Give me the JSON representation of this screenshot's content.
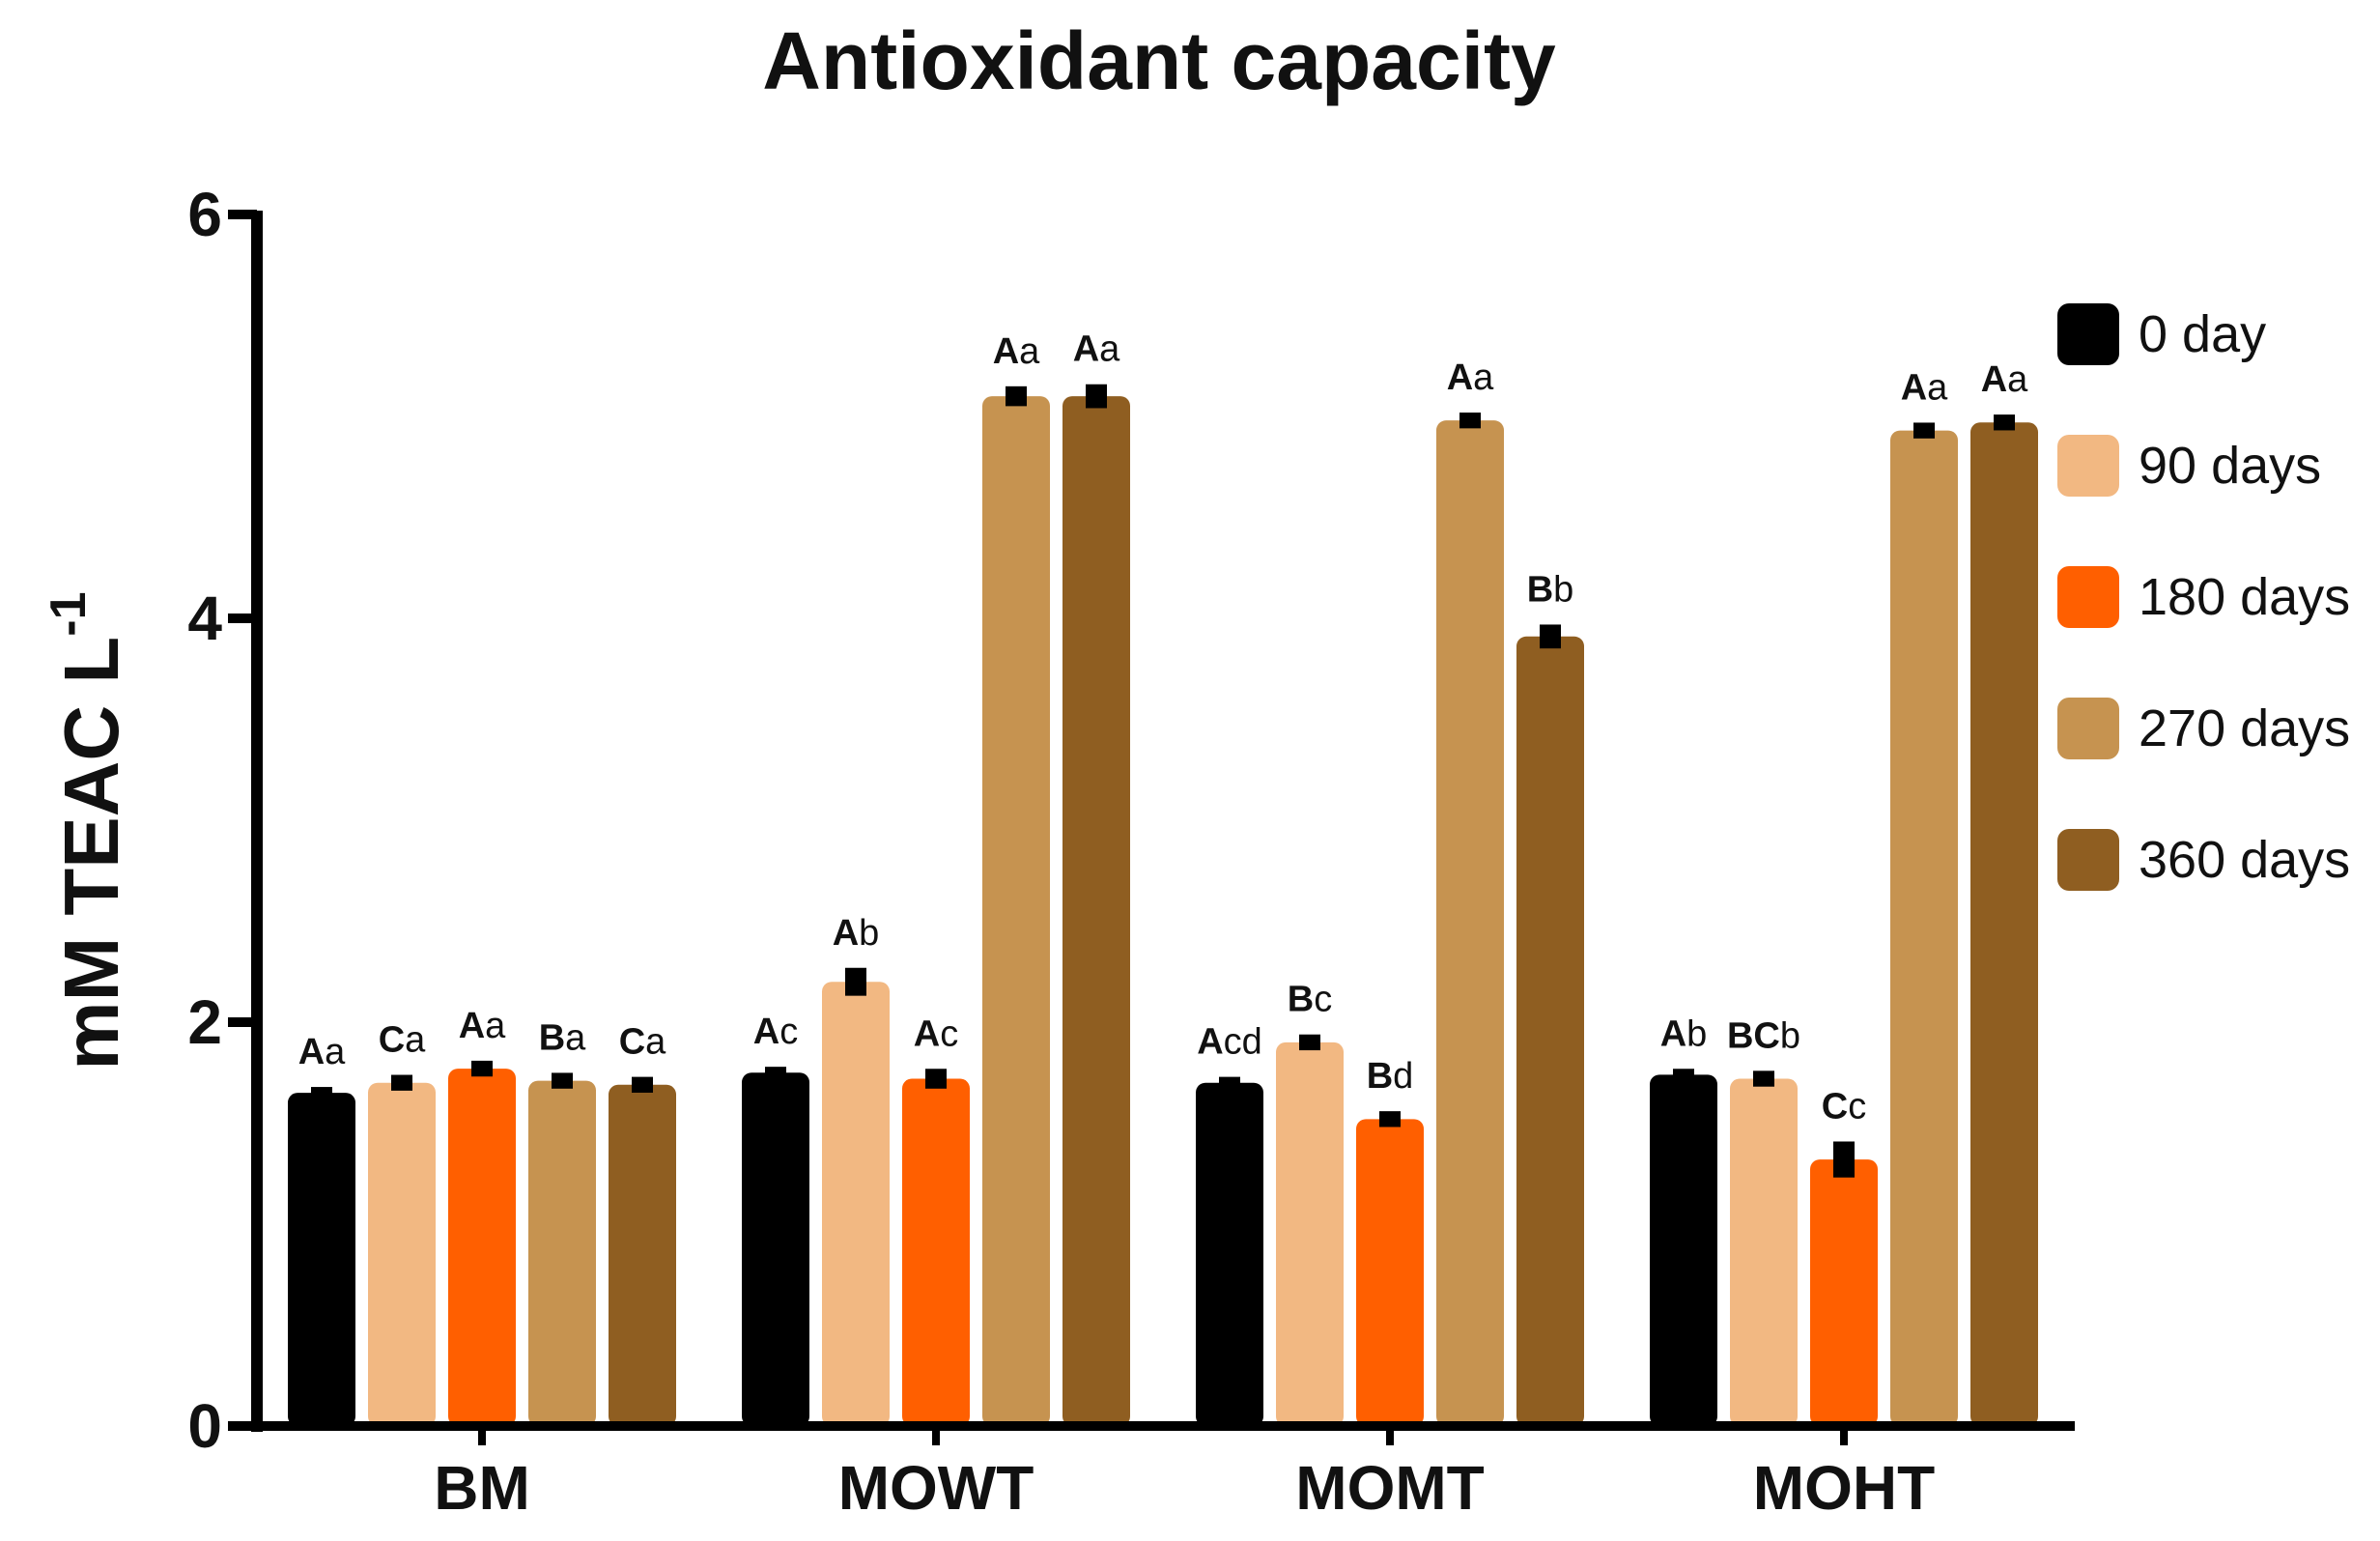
{
  "chart_data": {
    "type": "bar",
    "title": "Antioxidant capacity",
    "xlabel": "",
    "ylabel": "mM TEAC L",
    "ylabel_superscript": "-1",
    "ylim": [
      0,
      6
    ],
    "yticks": [
      "0",
      "2",
      "4",
      "6"
    ],
    "categories": [
      "BM",
      "MOWT",
      "MOMT",
      "MOHT"
    ],
    "legend_position": "right",
    "series": [
      {
        "name": "0 day",
        "color": "#000000",
        "values": [
          1.65,
          1.75,
          1.7,
          1.74
        ],
        "errors": [
          0.01,
          0.01,
          0.01,
          0.01
        ],
        "labels": [
          [
            "A",
            "a"
          ],
          [
            "A",
            "c"
          ],
          [
            "A",
            "cd"
          ],
          [
            "A",
            "b"
          ]
        ]
      },
      {
        "name": "90 days",
        "color": "#F2B882",
        "values": [
          1.7,
          2.2,
          1.9,
          1.72
        ],
        "errors": [
          0.02,
          0.05,
          0.02,
          0.02
        ],
        "labels": [
          [
            "C",
            "a"
          ],
          [
            "A",
            "b"
          ],
          [
            "B",
            "c"
          ],
          [
            "BC",
            "b"
          ]
        ]
      },
      {
        "name": "180 days",
        "color": "#FF5F00",
        "values": [
          1.77,
          1.72,
          1.52,
          1.32
        ],
        "errors": [
          0.02,
          0.03,
          0.02,
          0.07
        ],
        "labels": [
          [
            "A",
            "a"
          ],
          [
            "A",
            "c"
          ],
          [
            "B",
            "d"
          ],
          [
            "C",
            "c"
          ]
        ]
      },
      {
        "name": "270 days",
        "color": "#C69350",
        "values": [
          1.71,
          5.1,
          4.98,
          4.93
        ],
        "errors": [
          0.02,
          0.03,
          0.02,
          0.02
        ],
        "labels": [
          [
            "B",
            "a"
          ],
          [
            "A",
            "a"
          ],
          [
            "A",
            "a"
          ],
          [
            "A",
            "a"
          ]
        ]
      },
      {
        "name": "360 days",
        "color": "#8F5E21",
        "values": [
          1.69,
          5.1,
          3.91,
          4.97
        ],
        "errors": [
          0.02,
          0.04,
          0.04,
          0.02
        ],
        "labels": [
          [
            "C",
            "a"
          ],
          [
            "A",
            "a"
          ],
          [
            "B",
            "b"
          ],
          [
            "A",
            "a"
          ]
        ]
      }
    ]
  }
}
